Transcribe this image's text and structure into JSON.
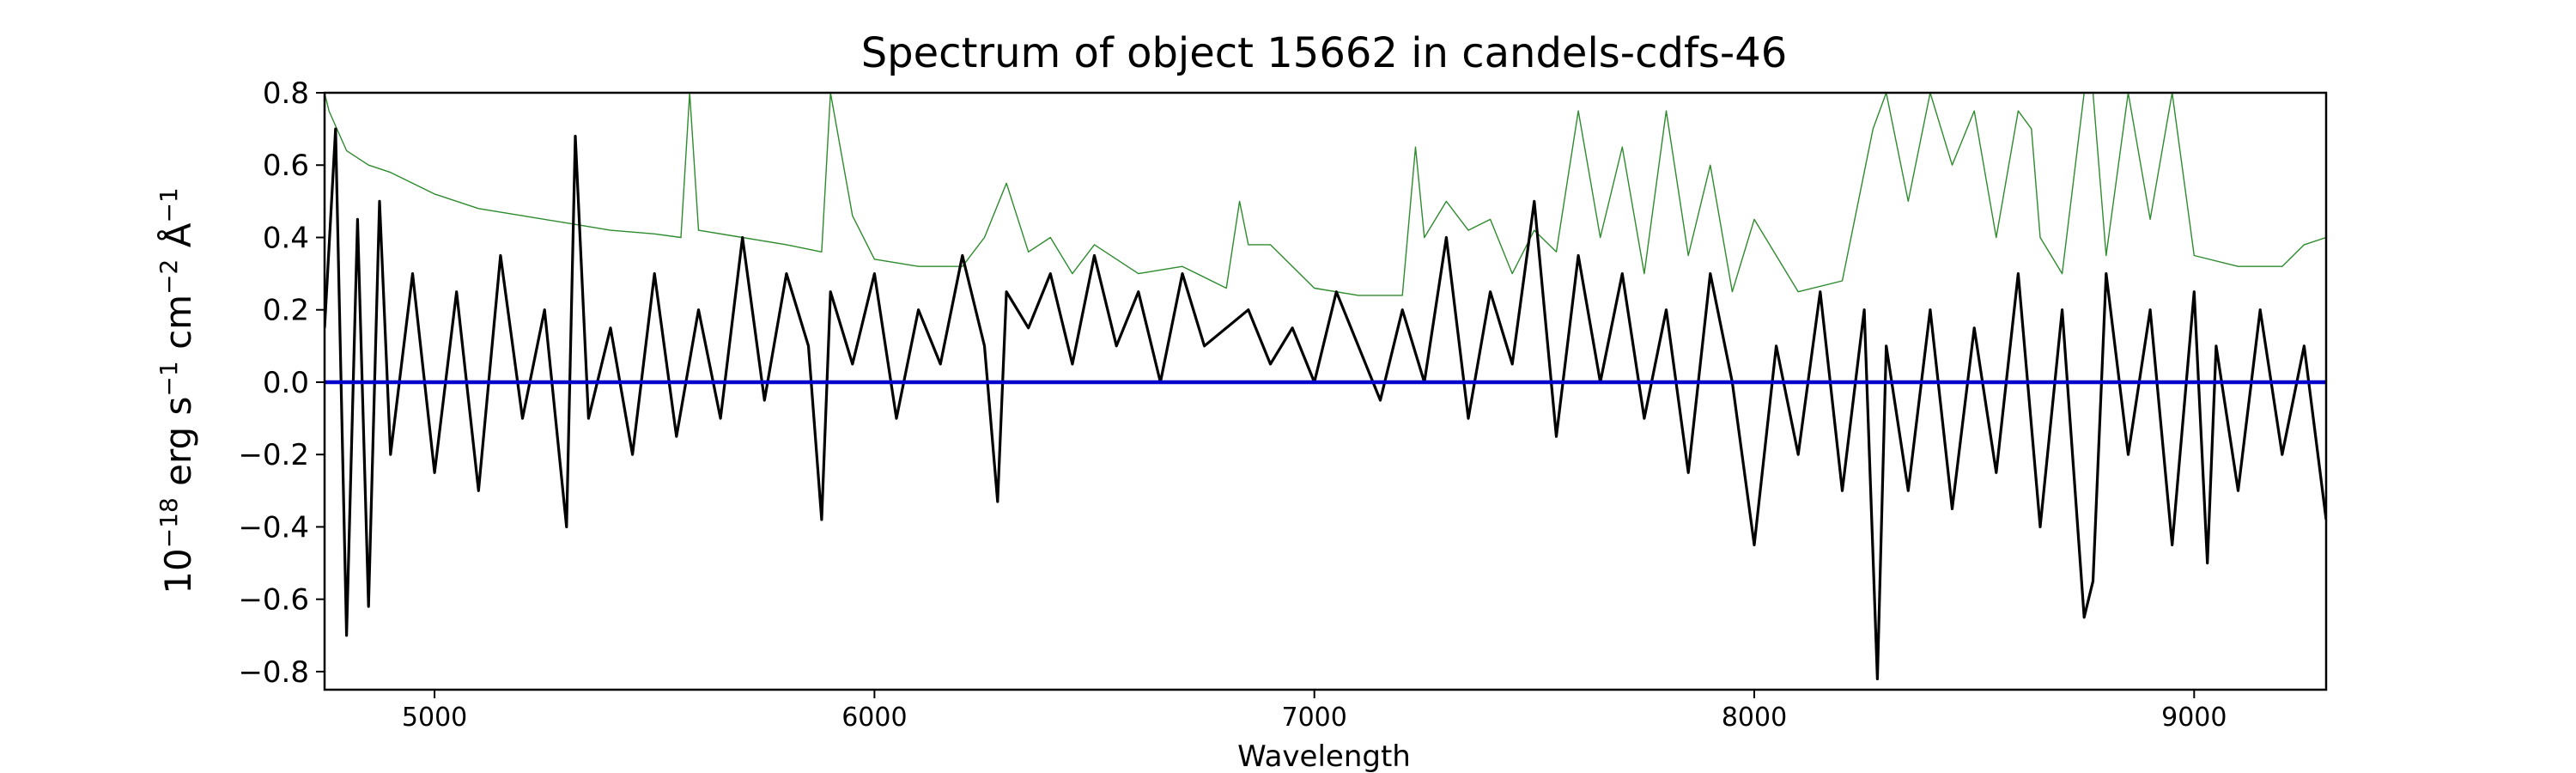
{
  "chart_data": {
    "type": "line",
    "title": "Spectrum of object 15662 in candels-cdfs-46",
    "xlabel": "Wavelength",
    "ylabel": "10^-18 erg s^-1 cm^-2 Å^-1",
    "ylabel_parts": {
      "base": "10",
      "exp": "−18",
      "unit1": " erg s",
      "exp1": "−1",
      "unit2": " cm",
      "exp2": "−2",
      "unit3": " Å",
      "exp3": "−1"
    },
    "xlim": [
      4750,
      9300
    ],
    "ylim": [
      -0.85,
      0.8
    ],
    "x_ticks": [
      5000,
      6000,
      7000,
      8000,
      9000
    ],
    "x_tick_labels": [
      "5000",
      "6000",
      "7000",
      "8000",
      "9000"
    ],
    "y_ticks": [
      -0.8,
      -0.6,
      -0.4,
      -0.2,
      0.0,
      0.2,
      0.4,
      0.6,
      0.8
    ],
    "y_tick_labels": [
      "−0.8",
      "−0.6",
      "−0.4",
      "−0.2",
      "0.0",
      "0.2",
      "0.4",
      "0.6",
      "0.8"
    ],
    "grid": false,
    "legend": "none",
    "series": [
      {
        "role": "flux",
        "color": "#000000",
        "x": [
          4750,
          4775,
          4800,
          4825,
          4850,
          4875,
          4900,
          4950,
          5000,
          5050,
          5100,
          5150,
          5200,
          5250,
          5300,
          5320,
          5350,
          5400,
          5450,
          5500,
          5550,
          5600,
          5650,
          5700,
          5750,
          5800,
          5850,
          5880,
          5900,
          5950,
          6000,
          6050,
          6100,
          6150,
          6200,
          6250,
          6280,
          6300,
          6350,
          6400,
          6450,
          6500,
          6550,
          6600,
          6650,
          6700,
          6750,
          6800,
          6850,
          6900,
          6950,
          7000,
          7050,
          7100,
          7150,
          7200,
          7250,
          7300,
          7350,
          7400,
          7450,
          7500,
          7550,
          7600,
          7650,
          7700,
          7750,
          7800,
          7850,
          7900,
          7950,
          8000,
          8050,
          8100,
          8150,
          8200,
          8250,
          8280,
          8300,
          8350,
          8400,
          8450,
          8500,
          8550,
          8600,
          8650,
          8700,
          8750,
          8770,
          8800,
          8850,
          8900,
          8950,
          9000,
          9030,
          9050,
          9100,
          9150,
          9200,
          9250,
          9300
        ],
        "y": [
          0.15,
          0.7,
          -0.7,
          0.45,
          -0.62,
          0.5,
          -0.2,
          0.3,
          -0.25,
          0.25,
          -0.3,
          0.35,
          -0.1,
          0.2,
          -0.4,
          0.68,
          -0.1,
          0.15,
          -0.2,
          0.3,
          -0.15,
          0.2,
          -0.1,
          0.4,
          -0.05,
          0.3,
          0.1,
          -0.38,
          0.25,
          0.05,
          0.3,
          -0.1,
          0.2,
          0.05,
          0.35,
          0.1,
          -0.33,
          0.25,
          0.15,
          0.3,
          0.05,
          0.35,
          0.1,
          0.25,
          0.0,
          0.3,
          0.1,
          0.15,
          0.2,
          0.05,
          0.15,
          0.0,
          0.25,
          0.1,
          -0.05,
          0.2,
          0.0,
          0.4,
          -0.1,
          0.25,
          0.05,
          0.5,
          -0.15,
          0.35,
          0.0,
          0.3,
          -0.1,
          0.2,
          -0.25,
          0.3,
          0.0,
          -0.45,
          0.1,
          -0.2,
          0.25,
          -0.3,
          0.2,
          -0.82,
          0.1,
          -0.3,
          0.2,
          -0.35,
          0.15,
          -0.25,
          0.3,
          -0.4,
          0.2,
          -0.65,
          -0.55,
          0.3,
          -0.2,
          0.2,
          -0.45,
          0.25,
          -0.5,
          0.1,
          -0.3,
          0.2,
          -0.2,
          0.1,
          -0.38
        ]
      },
      {
        "role": "noise",
        "color": "#2e8b2e",
        "x": [
          4750,
          4760,
          4800,
          4850,
          4900,
          5000,
          5100,
          5200,
          5300,
          5400,
          5500,
          5560,
          5580,
          5600,
          5700,
          5800,
          5880,
          5900,
          5950,
          6000,
          6100,
          6200,
          6250,
          6300,
          6350,
          6400,
          6450,
          6500,
          6600,
          6700,
          6800,
          6830,
          6850,
          6900,
          7000,
          7100,
          7200,
          7230,
          7250,
          7300,
          7350,
          7400,
          7450,
          7500,
          7550,
          7600,
          7650,
          7700,
          7750,
          7800,
          7850,
          7900,
          7950,
          8000,
          8100,
          8200,
          8270,
          8300,
          8350,
          8400,
          8450,
          8500,
          8550,
          8600,
          8630,
          8650,
          8700,
          8750,
          8770,
          8800,
          8850,
          8900,
          8950,
          9000,
          9100,
          9200,
          9250,
          9300
        ],
        "y": [
          0.8,
          0.75,
          0.64,
          0.6,
          0.58,
          0.52,
          0.48,
          0.46,
          0.44,
          0.42,
          0.41,
          0.4,
          0.8,
          0.42,
          0.4,
          0.38,
          0.36,
          0.8,
          0.46,
          0.34,
          0.32,
          0.32,
          0.4,
          0.55,
          0.36,
          0.4,
          0.3,
          0.38,
          0.3,
          0.32,
          0.26,
          0.5,
          0.38,
          0.38,
          0.26,
          0.24,
          0.24,
          0.65,
          0.4,
          0.5,
          0.42,
          0.45,
          0.3,
          0.42,
          0.36,
          0.75,
          0.4,
          0.65,
          0.3,
          0.75,
          0.35,
          0.6,
          0.25,
          0.45,
          0.25,
          0.28,
          0.7,
          0.8,
          0.5,
          0.8,
          0.6,
          0.75,
          0.4,
          0.75,
          0.7,
          0.4,
          0.3,
          0.8,
          0.8,
          0.35,
          0.8,
          0.45,
          0.8,
          0.35,
          0.32,
          0.32,
          0.38,
          0.4
        ]
      },
      {
        "role": "zero-model",
        "color": "#0000cc",
        "x": [
          4750,
          9300
        ],
        "y": [
          0.0,
          0.0
        ]
      }
    ]
  }
}
